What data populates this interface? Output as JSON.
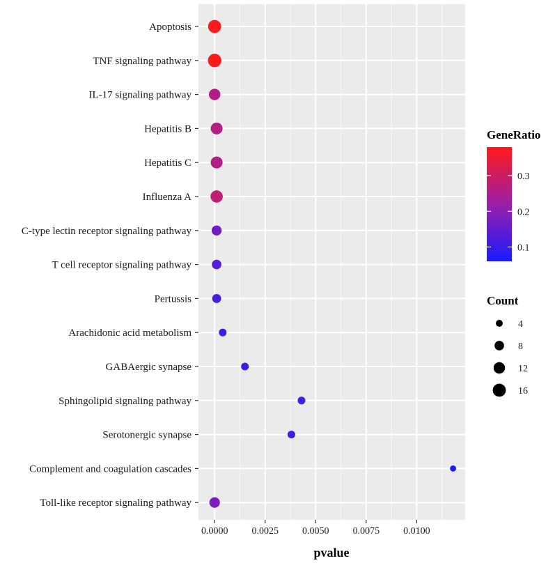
{
  "chart_data": {
    "type": "scatter",
    "subtype": "dot-plot",
    "xlabel": "pvalue",
    "ylabel": "",
    "xlim": [
      -0.0008,
      0.0124
    ],
    "x_ticks": [
      0.0,
      0.0025,
      0.005,
      0.0075,
      0.01
    ],
    "x_tick_labels": [
      "0.0000",
      "0.0025",
      "0.0050",
      "0.0075",
      "0.0100"
    ],
    "grid": true,
    "points": [
      {
        "term": "Apoptosis",
        "pvalue": 0.0,
        "gene_ratio": 0.38,
        "count": 16
      },
      {
        "term": "TNF signaling pathway",
        "pvalue": 0.0,
        "gene_ratio": 0.38,
        "count": 17
      },
      {
        "term": "IL-17 signaling pathway",
        "pvalue": 0.0,
        "gene_ratio": 0.26,
        "count": 12
      },
      {
        "term": "Hepatitis B",
        "pvalue": 0.0001,
        "gene_ratio": 0.26,
        "count": 13
      },
      {
        "term": "Hepatitis C",
        "pvalue": 0.0001,
        "gene_ratio": 0.26,
        "count": 13
      },
      {
        "term": "Influenza A",
        "pvalue": 0.0001,
        "gene_ratio": 0.28,
        "count": 14
      },
      {
        "term": "C-type lectin receptor signaling pathway",
        "pvalue": 0.0001,
        "gene_ratio": 0.17,
        "count": 9
      },
      {
        "term": "T cell receptor signaling pathway",
        "pvalue": 0.0001,
        "gene_ratio": 0.13,
        "count": 8
      },
      {
        "term": "Pertussis",
        "pvalue": 0.0001,
        "gene_ratio": 0.12,
        "count": 7
      },
      {
        "term": "Arachidonic acid metabolism",
        "pvalue": 0.0004,
        "gene_ratio": 0.11,
        "count": 5
      },
      {
        "term": "GABAergic synapse",
        "pvalue": 0.0015,
        "gene_ratio": 0.11,
        "count": 5
      },
      {
        "term": "Sphingolipid signaling pathway",
        "pvalue": 0.0043,
        "gene_ratio": 0.11,
        "count": 5
      },
      {
        "term": "Serotonergic synapse",
        "pvalue": 0.0038,
        "gene_ratio": 0.11,
        "count": 5
      },
      {
        "term": "Complement and coagulation cascades",
        "pvalue": 0.0118,
        "gene_ratio": 0.06,
        "count": 3
      },
      {
        "term": "Toll-like receptor signaling pathway",
        "pvalue": 0.0,
        "gene_ratio": 0.18,
        "count": 10
      }
    ],
    "color_legend": {
      "title": "GeneRatio",
      "range": [
        0.06,
        0.38
      ],
      "ticks": [
        0.1,
        0.2,
        0.3
      ],
      "tick_labels": [
        "0.1",
        "0.2",
        "0.3"
      ],
      "low_color": "#1a1aff",
      "mid_color": "#9a1fa8",
      "high_color": "#ff1a1a"
    },
    "size_legend": {
      "title": "Count",
      "values": [
        4,
        8,
        12,
        16
      ],
      "labels": [
        "4",
        "8",
        "12",
        "16"
      ]
    }
  },
  "colors": {
    "panel_bg": "#ebebeb",
    "grid": "#ffffff"
  }
}
